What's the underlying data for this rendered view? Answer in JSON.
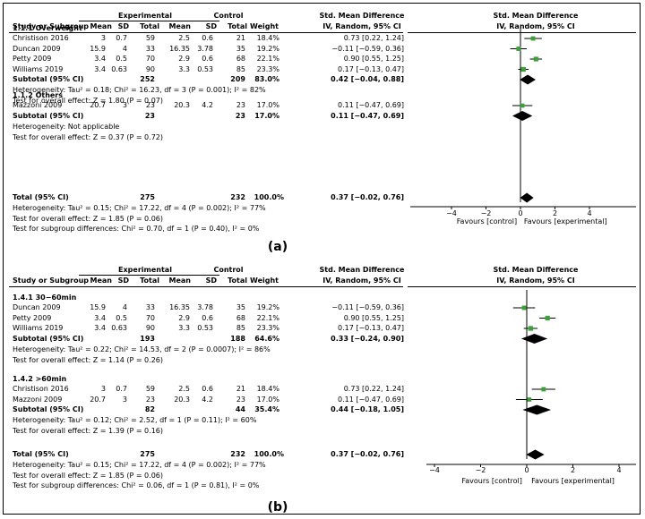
{
  "panels": [
    {
      "caption": "(a)",
      "header": {
        "study": "Study or Subgroup",
        "experimental": "Experimental",
        "control": "Control",
        "mean": "Mean",
        "sd": "SD",
        "total": "Total",
        "weight": "Weight",
        "smd": "Std. Mean Difference",
        "method": "IV, Random, 95% CI",
        "plot_title": "Std. Mean Difference",
        "plot_method": "IV, Random, 95% CI"
      },
      "groups": [
        {
          "title": "1.1.1 Overweight",
          "studies": [
            {
              "name": "Christison 2016",
              "e_mean": "3",
              "e_sd": "0.7",
              "e_total": "59",
              "c_mean": "2.5",
              "c_sd": "0.6",
              "c_total": "21",
              "weight": "18.4%",
              "ci": "0.73 [0.22, 1.24]"
            },
            {
              "name": "Duncan 2009",
              "e_mean": "15.9",
              "e_sd": "4",
              "e_total": "33",
              "c_mean": "16.35",
              "c_sd": "3.78",
              "c_total": "35",
              "weight": "19.2%",
              "ci": "−0.11 [−0.59, 0.36]"
            },
            {
              "name": "Petty 2009",
              "e_mean": "3.4",
              "e_sd": "0.5",
              "e_total": "70",
              "c_mean": "2.9",
              "c_sd": "0.6",
              "c_total": "68",
              "weight": "22.1%",
              "ci": "0.90 [0.55, 1.25]"
            },
            {
              "name": "Williams 2019",
              "e_mean": "3.4",
              "e_sd": "0.63",
              "e_total": "90",
              "c_mean": "3.3",
              "c_sd": "0.53",
              "c_total": "85",
              "weight": "23.3%",
              "ci": "0.17 [−0.13, 0.47]"
            }
          ],
          "subtotal": {
            "label": "Subtotal (95% CI)",
            "e_total": "252",
            "c_total": "209",
            "weight": "83.0%",
            "ci": "0.42 [−0.04, 0.88]"
          },
          "heterogeneity": "Heterogeneity: Tau² = 0.18; Chi² = 16.23, df = 3 (P = 0.001); I² = 82%",
          "overall": "Test for overall effect: Z = 1.80 (P = 0.07)"
        },
        {
          "title": "1.1.2 Others",
          "studies": [
            {
              "name": "Mazzoni 2009",
              "e_mean": "20.7",
              "e_sd": "3",
              "e_total": "23",
              "c_mean": "20.3",
              "c_sd": "4.2",
              "c_total": "23",
              "weight": "17.0%",
              "ci": "0.11 [−0.47, 0.69]"
            }
          ],
          "subtotal": {
            "label": "Subtotal (95% CI)",
            "e_total": "23",
            "c_total": "23",
            "weight": "17.0%",
            "ci": "0.11 [−0.47, 0.69]"
          },
          "heterogeneity": "Heterogeneity: Not applicable",
          "overall": "Test for overall effect: Z = 0.37 (P = 0.72)"
        }
      ],
      "total": {
        "label": "Total (95% CI)",
        "e_total": "275",
        "c_total": "232",
        "weight": "100.0%",
        "ci": "0.37 [−0.02, 0.76]",
        "heterogeneity": "Heterogeneity: Tau² = 0.15; Chi² = 17.22, df = 4 (P = 0.002); I² = 77%",
        "overall": "Test for overall effect: Z = 1.85 (P = 0.06)",
        "subgroup": "Test for subgroup differences: Chi² = 0.70, df = 1 (P = 0.40), I² = 0%"
      },
      "axis": {
        "favours_left": "Favours [control]",
        "favours_right": "Favours [experimental]"
      }
    },
    {
      "caption": "(b)",
      "header": {
        "study": "Study or Subgroup",
        "experimental": "Experimental",
        "control": "Control",
        "mean": "Mean",
        "sd": "SD",
        "total": "Total",
        "weight": "Weight",
        "smd": "Std. Mean Difference",
        "method": "IV, Random, 95% CI",
        "plot_title": "Std. Mean Difference",
        "plot_method": "IV, Random, 95% CI"
      },
      "groups": [
        {
          "title": "1.4.1 30−60min",
          "studies": [
            {
              "name": "Duncan 2009",
              "e_mean": "15.9",
              "e_sd": "4",
              "e_total": "33",
              "c_mean": "16.35",
              "c_sd": "3.78",
              "c_total": "35",
              "weight": "19.2%",
              "ci": "−0.11 [−0.59, 0.36]"
            },
            {
              "name": "Petty 2009",
              "e_mean": "3.4",
              "e_sd": "0.5",
              "e_total": "70",
              "c_mean": "2.9",
              "c_sd": "0.6",
              "c_total": "68",
              "weight": "22.1%",
              "ci": "0.90 [0.55, 1.25]"
            },
            {
              "name": "Williams 2019",
              "e_mean": "3.4",
              "e_sd": "0.63",
              "e_total": "90",
              "c_mean": "3.3",
              "c_sd": "0.53",
              "c_total": "85",
              "weight": "23.3%",
              "ci": "0.17 [−0.13, 0.47]"
            }
          ],
          "subtotal": {
            "label": "Subtotal (95% CI)",
            "e_total": "193",
            "c_total": "188",
            "weight": "64.6%",
            "ci": "0.33 [−0.24, 0.90]"
          },
          "heterogeneity": "Heterogeneity: Tau² = 0.22; Chi² = 14.53, df = 2 (P = 0.0007); I² = 86%",
          "overall": "Test for overall effect: Z = 1.14 (P = 0.26)"
        },
        {
          "title": "1.4.2 >60min",
          "studies": [
            {
              "name": "Christison 2016",
              "e_mean": "3",
              "e_sd": "0.7",
              "e_total": "59",
              "c_mean": "2.5",
              "c_sd": "0.6",
              "c_total": "21",
              "weight": "18.4%",
              "ci": "0.73 [0.22, 1.24]"
            },
            {
              "name": "Mazzoni 2009",
              "e_mean": "20.7",
              "e_sd": "3",
              "e_total": "23",
              "c_mean": "20.3",
              "c_sd": "4.2",
              "c_total": "23",
              "weight": "17.0%",
              "ci": "0.11 [−0.47, 0.69]"
            }
          ],
          "subtotal": {
            "label": "Subtotal (95% CI)",
            "e_total": "82",
            "c_total": "44",
            "weight": "35.4%",
            "ci": "0.44 [−0.18, 1.05]"
          },
          "heterogeneity": "Heterogeneity: Tau² = 0.12; Chi² = 2.52, df = 1 (P = 0.11); I² = 60%",
          "overall": "Test for overall effect: Z = 1.39 (P = 0.16)"
        }
      ],
      "total": {
        "label": "Total (95% CI)",
        "e_total": "275",
        "c_total": "232",
        "weight": "100.0%",
        "ci": "0.37 [−0.02, 0.76]",
        "heterogeneity": "Heterogeneity: Tau² = 0.15; Chi² = 17.22, df = 4 (P = 0.002); I² = 77%",
        "overall": "Test for overall effect: Z = 1.85 (P = 0.06)",
        "subgroup": "Test for subgroup differences: Chi² = 0.06, df = 1 (P = 0.81), I² = 0%"
      },
      "axis": {
        "favours_left": "Favours [control]",
        "favours_right": "Favours [experimental]"
      }
    }
  ],
  "colors": {
    "study_marker": "#3aa335",
    "diamond": "#000000",
    "line": "#000000"
  },
  "chart_data": [
    {
      "type": "forest",
      "xlim": [
        -4,
        4
      ],
      "xticks": [
        "−4",
        "−2",
        "0",
        "2",
        "4"
      ],
      "tick_values": [
        -4,
        -2,
        0,
        2,
        4
      ],
      "rows": [
        {
          "label": "Christison 2016",
          "kind": "study",
          "est": 0.73,
          "lo": 0.22,
          "hi": 1.24,
          "weight": 18.4
        },
        {
          "label": "Duncan 2009",
          "kind": "study",
          "est": -0.11,
          "lo": -0.59,
          "hi": 0.36,
          "weight": 19.2
        },
        {
          "label": "Petty 2009",
          "kind": "study",
          "est": 0.9,
          "lo": 0.55,
          "hi": 1.25,
          "weight": 22.1
        },
        {
          "label": "Williams 2019",
          "kind": "study",
          "est": 0.17,
          "lo": -0.13,
          "hi": 0.47,
          "weight": 23.3
        },
        {
          "label": "Subtotal (95% CI)",
          "kind": "diamond",
          "est": 0.42,
          "lo": -0.04,
          "hi": 0.88
        },
        {
          "label": "Mazzoni 2009",
          "kind": "study",
          "est": 0.11,
          "lo": -0.47,
          "hi": 0.69,
          "weight": 17.0
        },
        {
          "label": "Subtotal (95% CI)",
          "kind": "diamond",
          "est": 0.11,
          "lo": -0.47,
          "hi": 0.69
        },
        {
          "label": "Total (95% CI)",
          "kind": "diamond",
          "est": 0.37,
          "lo": -0.02,
          "hi": 0.76
        }
      ]
    },
    {
      "type": "forest",
      "xlim": [
        -4,
        4
      ],
      "xticks": [
        "−4",
        "−2",
        "0",
        "2",
        "4"
      ],
      "tick_values": [
        -4,
        -2,
        0,
        2,
        4
      ],
      "rows": [
        {
          "label": "Duncan 2009",
          "kind": "study",
          "est": -0.11,
          "lo": -0.59,
          "hi": 0.36,
          "weight": 19.2
        },
        {
          "label": "Petty 2009",
          "kind": "study",
          "est": 0.9,
          "lo": 0.55,
          "hi": 1.25,
          "weight": 22.1
        },
        {
          "label": "Williams 2019",
          "kind": "study",
          "est": 0.17,
          "lo": -0.13,
          "hi": 0.47,
          "weight": 23.3
        },
        {
          "label": "Subtotal (95% CI)",
          "kind": "diamond",
          "est": 0.33,
          "lo": -0.24,
          "hi": 0.9
        },
        {
          "label": "Christison 2016",
          "kind": "study",
          "est": 0.73,
          "lo": 0.22,
          "hi": 1.24,
          "weight": 18.4
        },
        {
          "label": "Mazzoni 2009",
          "kind": "study",
          "est": 0.11,
          "lo": -0.47,
          "hi": 0.69,
          "weight": 17.0
        },
        {
          "label": "Subtotal (95% CI)",
          "kind": "diamond",
          "est": 0.44,
          "lo": -0.18,
          "hi": 1.05
        },
        {
          "label": "Total (95% CI)",
          "kind": "diamond",
          "est": 0.37,
          "lo": -0.02,
          "hi": 0.76
        }
      ]
    }
  ]
}
